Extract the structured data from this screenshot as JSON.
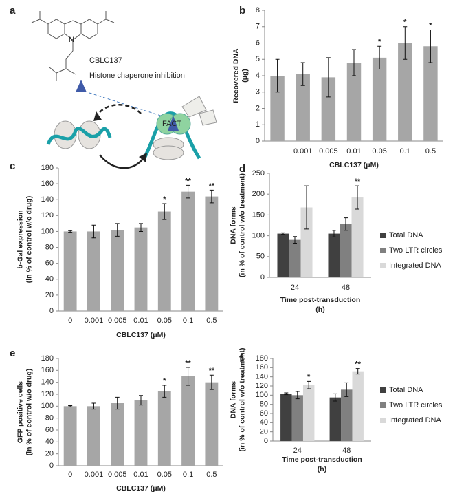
{
  "diagram": {
    "panel": "a",
    "compound": "CBLC137",
    "caption": "Histone chaperone inhibition",
    "complex": "FACT"
  },
  "chart_data": [
    {
      "type": "bar",
      "panel": "b",
      "categories": [
        null,
        "0.001",
        "0.005",
        "0.01",
        "0.05",
        "0.1",
        "0.5"
      ],
      "values": [
        4.0,
        4.1,
        3.9,
        4.8,
        5.1,
        6.0,
        5.8
      ],
      "errors": [
        1.0,
        0.7,
        1.2,
        0.8,
        0.7,
        1.0,
        1.0
      ],
      "significance": [
        null,
        null,
        null,
        null,
        "*",
        "*",
        "*"
      ],
      "color": "#a6a6a6",
      "ylim": [
        0,
        8
      ],
      "yticks": [
        0,
        1,
        2,
        3,
        4,
        5,
        6,
        7,
        8
      ],
      "xlabel": [
        "CBLC137 (μM)"
      ],
      "ylabel": [
        "Recovered DNA",
        "(μg)"
      ]
    },
    {
      "type": "bar",
      "panel": "c",
      "categories": [
        "0",
        "0.001",
        "0.005",
        "0.01",
        "0.05",
        "0.1",
        "0.5"
      ],
      "values": [
        100,
        100,
        102,
        105,
        125,
        150,
        144
      ],
      "errors": [
        1,
        8,
        8,
        5,
        10,
        8,
        8
      ],
      "significance": [
        null,
        null,
        null,
        null,
        "*",
        "**",
        "**"
      ],
      "color": "#a6a6a6",
      "ylim": [
        0,
        180
      ],
      "yticks": [
        0,
        20,
        40,
        60,
        80,
        100,
        120,
        140,
        160,
        180
      ],
      "xlabel": [
        "CBLC137 (μM)"
      ],
      "ylabel": [
        "b-Gal expression",
        "(in % of control w/o drug)"
      ]
    },
    {
      "type": "grouped_bar",
      "panel": "d",
      "categories": [
        "24",
        "48"
      ],
      "series": [
        {
          "name": "Total DNA",
          "color": "#404040",
          "values": [
            105,
            105
          ],
          "errors": [
            2,
            8
          ],
          "significance": [
            null,
            null
          ]
        },
        {
          "name": "Two LTR circles",
          "color": "#808080",
          "values": [
            90,
            128
          ],
          "errors": [
            8,
            15
          ],
          "significance": [
            null,
            null
          ]
        },
        {
          "name": "Integrated DNA",
          "color": "#d9d9d9",
          "values": [
            168,
            192
          ],
          "errors": [
            52,
            28
          ],
          "significance": [
            null,
            "**"
          ]
        }
      ],
      "ylim": [
        0,
        250
      ],
      "yticks": [
        0,
        50,
        100,
        150,
        200,
        250
      ],
      "xlabel": [
        "Time post-transduction",
        "(h)"
      ],
      "ylabel": [
        "DNA forms",
        "(in % of control w/o treatment)"
      ]
    },
    {
      "type": "bar",
      "panel": "e",
      "categories": [
        "0",
        "0.001",
        "0.005",
        "0.01",
        "0.05",
        "0.1",
        "0.5"
      ],
      "values": [
        100,
        100,
        105,
        110,
        125,
        150,
        140
      ],
      "errors": [
        1,
        5,
        10,
        8,
        10,
        15,
        12
      ],
      "significance": [
        null,
        null,
        null,
        null,
        "*",
        "**",
        "**"
      ],
      "color": "#a6a6a6",
      "ylim": [
        0,
        180
      ],
      "yticks": [
        0,
        20,
        40,
        60,
        80,
        100,
        120,
        140,
        160,
        180
      ],
      "xlabel": [
        "CBLC137 (μM)"
      ],
      "ylabel": [
        "GFP positive cells",
        "(in % of control w/o drug)"
      ]
    },
    {
      "type": "grouped_bar",
      "panel": "f",
      "categories": [
        "24",
        "48"
      ],
      "series": [
        {
          "name": "Total DNA",
          "color": "#404040",
          "values": [
            103,
            95
          ],
          "errors": [
            2,
            8
          ],
          "significance": [
            null,
            null
          ]
        },
        {
          "name": "Two LTR circles",
          "color": "#808080",
          "values": [
            100,
            112
          ],
          "errors": [
            8,
            15
          ],
          "significance": [
            null,
            null
          ]
        },
        {
          "name": "Integrated DNA",
          "color": "#d9d9d9",
          "values": [
            122,
            152
          ],
          "errors": [
            8,
            6
          ],
          "significance": [
            "*",
            "**"
          ]
        }
      ],
      "ylim": [
        0,
        180
      ],
      "yticks": [
        0,
        20,
        40,
        60,
        80,
        100,
        120,
        140,
        160,
        180
      ],
      "xlabel": [
        "Time post-transduction",
        "(h)"
      ],
      "ylabel": [
        "DNA forms",
        "(in % of control w/o treatment)"
      ]
    }
  ]
}
